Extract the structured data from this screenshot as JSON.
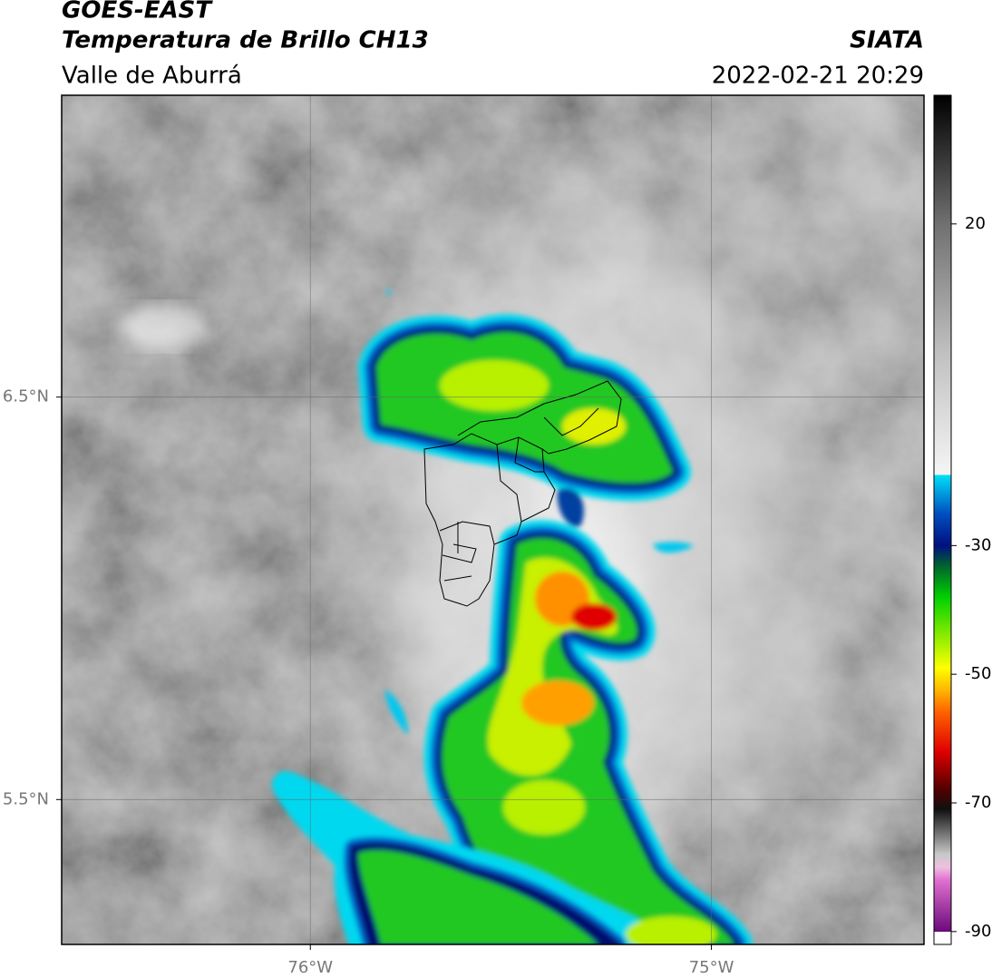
{
  "header": {
    "title": "GOES-EAST",
    "subtitle": "Temperatura de Brillo CH13",
    "region": "Valle de Aburrá",
    "source": "SIATA",
    "timestamp": "2022-02-21 20:29"
  },
  "map": {
    "lonlim": [
      -76.62,
      -74.47
    ],
    "latlim": [
      5.14,
      7.25
    ],
    "lonticks": [
      {
        "value": -76,
        "label": "76°W"
      },
      {
        "value": -75,
        "label": "75°W"
      }
    ],
    "latticks": [
      {
        "value": 5.5,
        "label": "5.5°N"
      },
      {
        "value": 6.5,
        "label": "6.5°N"
      }
    ],
    "grid": true
  },
  "colorbar": {
    "lim": [
      -92,
      40
    ],
    "ticks": [
      -90,
      -70,
      -50,
      -30,
      20
    ],
    "stops": [
      {
        "value": -92,
        "color": "#ffffff"
      },
      {
        "value": -90,
        "color": "#ffffff"
      },
      {
        "value": -90,
        "color": "#6a0a7a"
      },
      {
        "value": -82,
        "color": "#e070d0"
      },
      {
        "value": -80,
        "color": "#f0c0e0"
      },
      {
        "value": -78,
        "color": "#c8c8c8"
      },
      {
        "value": -71,
        "color": "#101010"
      },
      {
        "value": -68,
        "color": "#500000"
      },
      {
        "value": -62,
        "color": "#e00000"
      },
      {
        "value": -56,
        "color": "#ff6000"
      },
      {
        "value": -52,
        "color": "#ffc000"
      },
      {
        "value": -49,
        "color": "#ffff00"
      },
      {
        "value": -45,
        "color": "#a0f000"
      },
      {
        "value": -38,
        "color": "#00d000"
      },
      {
        "value": -33,
        "color": "#006030"
      },
      {
        "value": -30,
        "color": "#001080"
      },
      {
        "value": -25,
        "color": "#0050c0"
      },
      {
        "value": -20,
        "color": "#00c8f0"
      },
      {
        "value": -19,
        "color": "#00e0f0"
      },
      {
        "value": -19,
        "color": "#f5f5f5"
      },
      {
        "value": 0,
        "color": "#c0c0c0"
      },
      {
        "value": 20,
        "color": "#707070"
      },
      {
        "value": 40,
        "color": "#000000"
      }
    ]
  }
}
